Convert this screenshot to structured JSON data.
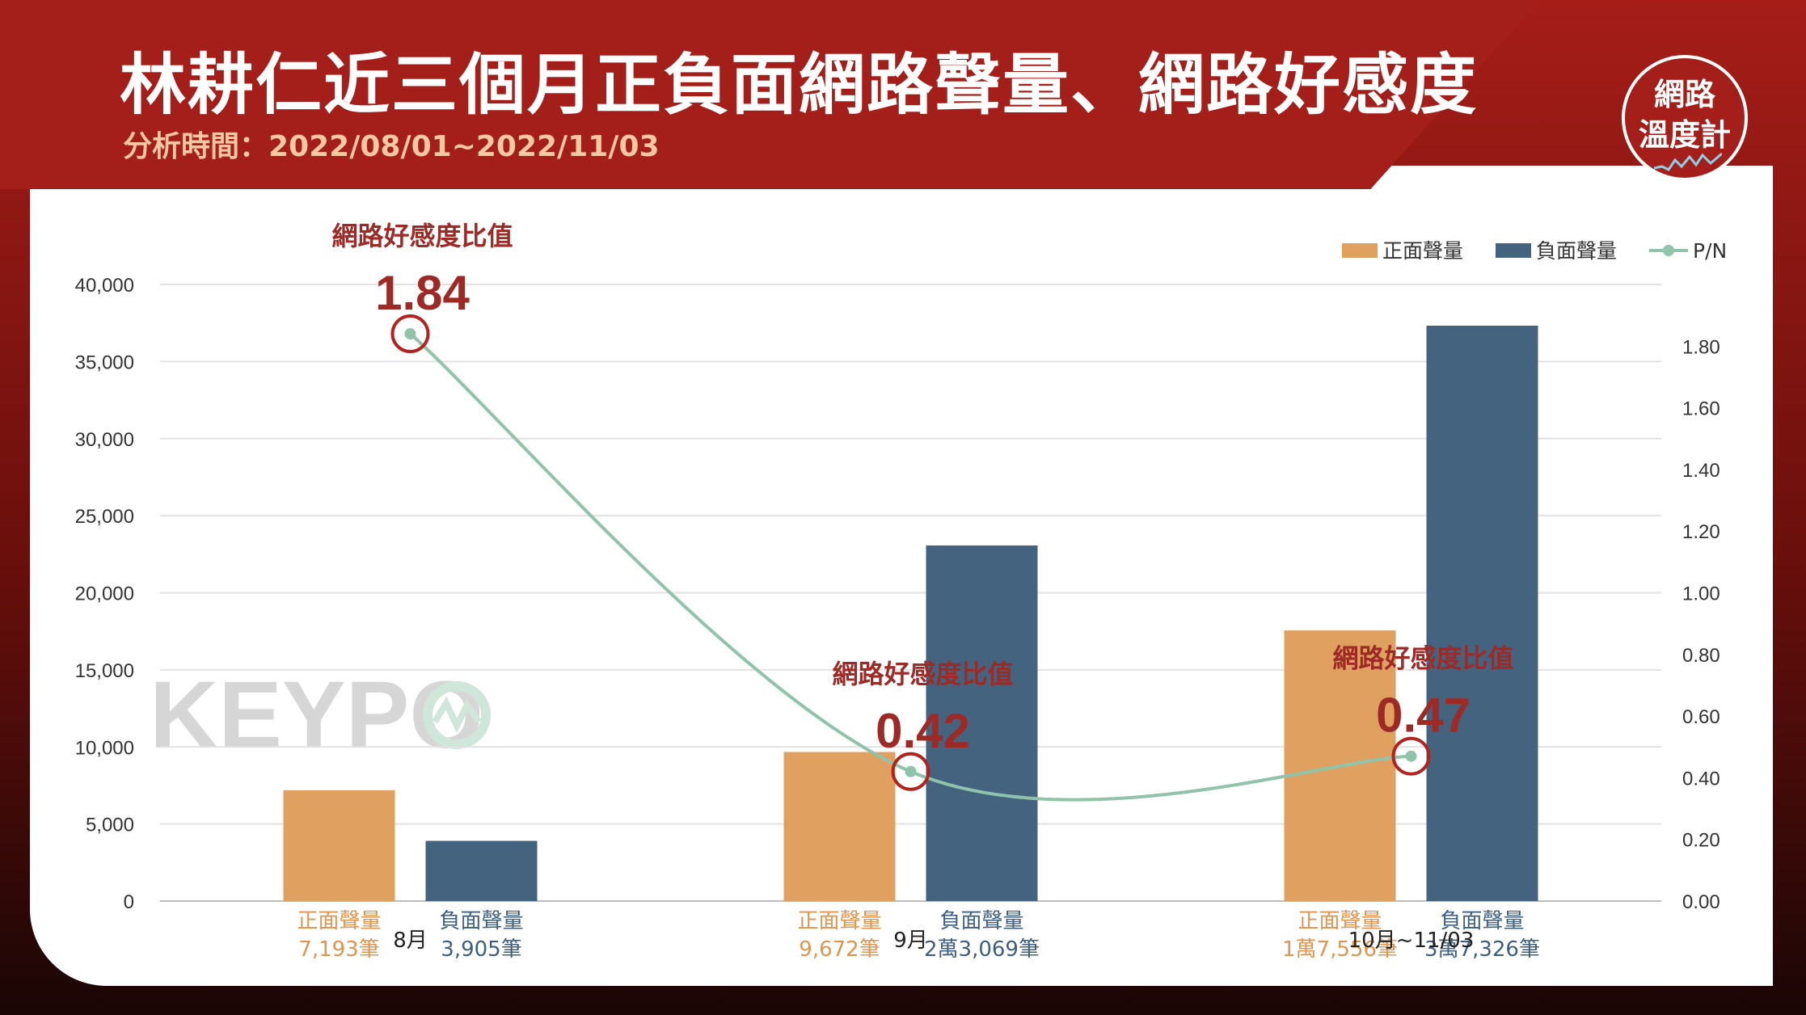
{
  "header": {
    "title": "林耕仁近三個月正負面網路聲量、網路好感度",
    "subtitle": "分析時間：2022/08/01~2022/11/03"
  },
  "logo": {
    "line1": "網路",
    "line2": "溫度計"
  },
  "watermark": "KEYPO",
  "colors": {
    "positive": "#e0a05f",
    "negative": "#44637f",
    "ratio_line": "#8fc3aa",
    "accent": "#9e2a26"
  },
  "chart_data": {
    "type": "bar",
    "categories": [
      "8月",
      "9月",
      "10月~11/03"
    ],
    "series": [
      {
        "name": "正面聲量",
        "type": "bar",
        "axis": "left",
        "values": [
          7193,
          9672,
          17556
        ]
      },
      {
        "name": "負面聲量",
        "type": "bar",
        "axis": "left",
        "values": [
          3905,
          23069,
          37326
        ]
      },
      {
        "name": "P/N",
        "type": "line",
        "axis": "right",
        "values": [
          1.84,
          0.42,
          0.47
        ]
      }
    ],
    "y_left": {
      "min": 0,
      "max": 40000,
      "ticks": [
        "0",
        "5,000",
        "10,000",
        "15,000",
        "20,000",
        "25,000",
        "30,000",
        "35,000",
        "40,000"
      ]
    },
    "y_right": {
      "min": 0,
      "max": 2.0,
      "ticks": [
        "0.00",
        "0.20",
        "0.40",
        "0.60",
        "0.80",
        "1.00",
        "1.20",
        "1.40",
        "1.60",
        "1.80"
      ]
    },
    "legend": [
      "正面聲量",
      "負面聲量",
      "P/N"
    ],
    "legend_position": "top-right",
    "grid": true,
    "bar_labels": {
      "positive_name": "正面聲量",
      "negative_name": "負面聲量",
      "positive_values": [
        "7,193筆",
        "9,672筆",
        "1萬7,556筆"
      ],
      "negative_values": [
        "3,905筆",
        "2萬3,069筆",
        "3萬7,326筆"
      ]
    },
    "annotations": [
      {
        "label": "網路好感度比值",
        "value": "1.84"
      },
      {
        "label": "網路好感度比值",
        "value": "0.42"
      },
      {
        "label": "網路好感度比值",
        "value": "0.47"
      }
    ]
  }
}
